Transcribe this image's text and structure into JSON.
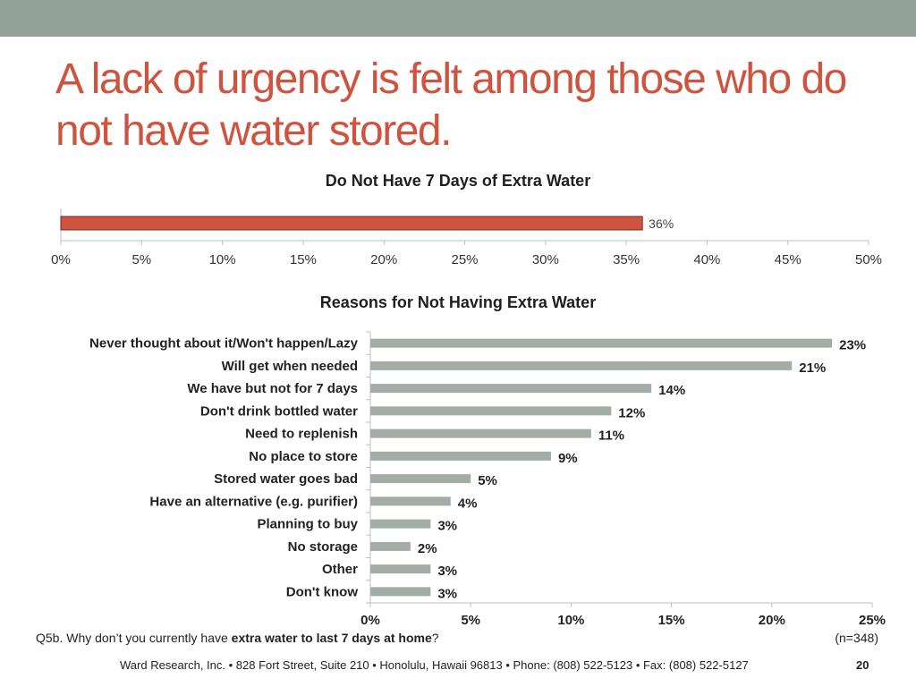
{
  "slide": {
    "title": "A lack of urgency is felt among those who do not have water stored.",
    "question_prefix": "Q5b. Why don’t you currently have ",
    "question_bold": "extra water to last 7 days at home",
    "question_suffix": "?",
    "sample_size": "(n=348)",
    "footer": "Ward Research, Inc. • 828 Fort Street, Suite 210 • Honolulu, Hawaii 96813 • Phone: (808) 522-5123 • Fax: (808) 522-5127",
    "page_number": "20"
  },
  "colors": {
    "band": "#93a299",
    "title": "#cf543f",
    "bar_primary": "#cf543f",
    "bar_secondary": "#a4aca6"
  },
  "chart_data": [
    {
      "type": "bar",
      "orientation": "horizontal",
      "title": "Do Not Have 7 Days of Extra Water",
      "categories": [
        ""
      ],
      "values": [
        36
      ],
      "data_labels": [
        "36%"
      ],
      "xlim": [
        0,
        50
      ],
      "x_ticks": [
        0,
        5,
        10,
        15,
        20,
        25,
        30,
        35,
        40,
        45,
        50
      ],
      "x_tick_labels": [
        "0%",
        "5%",
        "10%",
        "15%",
        "20%",
        "25%",
        "30%",
        "35%",
        "40%",
        "45%",
        "50%"
      ],
      "grid": false,
      "legend": "none"
    },
    {
      "type": "bar",
      "orientation": "horizontal",
      "title": "Reasons for Not Having Extra Water",
      "categories": [
        "Never thought about it/Won't happen/Lazy",
        "Will get when needed",
        "We have but not for 7 days",
        "Don't drink bottled water",
        "Need to replenish",
        "No place to store",
        "Stored water goes bad",
        "Have an alternative (e.g. purifier)",
        "Planning to buy",
        "No storage",
        "Other",
        "Don't know"
      ],
      "values": [
        23,
        21,
        14,
        12,
        11,
        9,
        5,
        4,
        3,
        2,
        3,
        3
      ],
      "data_labels": [
        "23%",
        "21%",
        "14%",
        "12%",
        "11%",
        "9%",
        "5%",
        "4%",
        "3%",
        "2%",
        "3%",
        "3%"
      ],
      "xlim": [
        0,
        25
      ],
      "x_ticks": [
        0,
        5,
        10,
        15,
        20,
        25
      ],
      "x_tick_labels": [
        "0%",
        "5%",
        "10%",
        "15%",
        "20%",
        "25%"
      ],
      "grid": false,
      "legend": "none"
    }
  ]
}
